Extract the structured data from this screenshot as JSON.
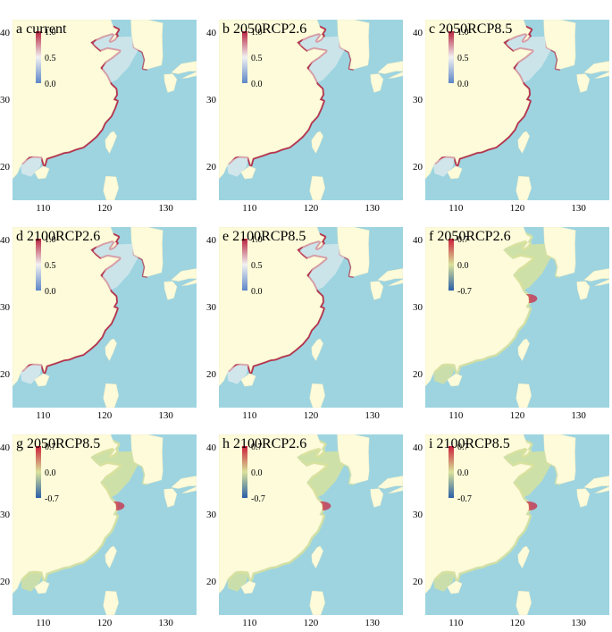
{
  "panels": [
    {
      "letter": "a",
      "label": "current",
      "scale": "prob",
      "ticks": [
        "1.0",
        "0.5",
        "0.0"
      ]
    },
    {
      "letter": "b",
      "label": "2050RCP2.6",
      "scale": "prob",
      "ticks": [
        "1.0",
        "0.5",
        "0.0"
      ]
    },
    {
      "letter": "c",
      "label": "2050RCP8.5",
      "scale": "prob",
      "ticks": [
        "1.0",
        "0.5",
        "0.0"
      ]
    },
    {
      "letter": "d",
      "label": "2100RCP2.6",
      "scale": "prob",
      "ticks": [
        "1.0",
        "0.5",
        "0.0"
      ]
    },
    {
      "letter": "e",
      "label": "2100RCP8.5",
      "scale": "prob",
      "ticks": [
        "1.0",
        "0.5",
        "0.0"
      ]
    },
    {
      "letter": "f",
      "label": "2050RCP2.6",
      "scale": "diff",
      "ticks": [
        "0.7",
        "0.0",
        "-0.7"
      ]
    },
    {
      "letter": "g",
      "label": "2050RCP8.5",
      "scale": "diff",
      "ticks": [
        "0.7",
        "0.0",
        "-0.7"
      ]
    },
    {
      "letter": "h",
      "label": "2100RCP2.6",
      "scale": "diff",
      "ticks": [
        "0.7",
        "0.0",
        "-0.7"
      ]
    },
    {
      "letter": "i",
      "label": "2100RCP8.5",
      "scale": "diff",
      "ticks": [
        "0.7",
        "0.0",
        "-0.7"
      ]
    }
  ],
  "axes": {
    "x_ticks": [
      "110",
      "120",
      "130"
    ],
    "y_ticks": [
      "40",
      "30",
      "20"
    ]
  },
  "colors": {
    "ocean": "#9dd4e0",
    "land": "#fdfbd9",
    "prob_high": "#b8233e",
    "prob_mid": "#f1f1f1",
    "prob_low": "#5e86c8",
    "diff_high": "#cc1f3a",
    "diff_mid": "#d9e29a",
    "diff_low": "#2b5fa8"
  }
}
